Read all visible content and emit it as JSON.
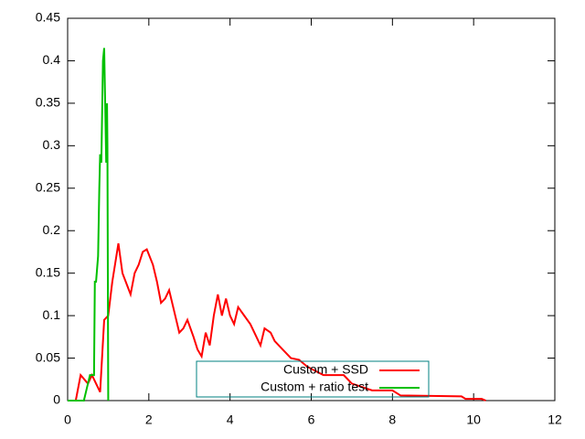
{
  "chart_data": {
    "type": "line",
    "xlim": [
      0,
      12
    ],
    "xticks": [
      0,
      2,
      4,
      6,
      8,
      10,
      12
    ],
    "ylim": [
      0,
      0.45
    ],
    "yticks": [
      0,
      0.05,
      0.1,
      0.15,
      0.2,
      0.25,
      0.3,
      0.35,
      0.4,
      0.45
    ],
    "legend": "lower center",
    "series": [
      {
        "name": "Custom + SSD",
        "color": "#ff0000",
        "x": [
          0,
          0.2,
          0.32,
          0.5,
          0.6,
          0.7,
          0.8,
          0.9,
          1.0,
          1.1,
          1.25,
          1.35,
          1.55,
          1.65,
          1.75,
          1.85,
          1.95,
          2.1,
          2.2,
          2.3,
          2.4,
          2.5,
          2.6,
          2.75,
          2.85,
          2.95,
          3.1,
          3.2,
          3.3,
          3.4,
          3.5,
          3.6,
          3.7,
          3.8,
          3.9,
          4.0,
          4.1,
          4.2,
          4.35,
          4.5,
          4.6,
          4.75,
          4.85,
          5.0,
          5.1,
          5.3,
          5.5,
          5.7,
          5.9,
          6.1,
          6.3,
          6.8,
          7.0,
          7.5,
          8.0,
          8.2,
          9.7,
          9.8,
          10.2,
          10.3
        ],
        "values": [
          0,
          0,
          0.03,
          0.02,
          0.03,
          0.02,
          0.01,
          0.095,
          0.1,
          0.14,
          0.185,
          0.15,
          0.125,
          0.15,
          0.16,
          0.175,
          0.178,
          0.16,
          0.14,
          0.115,
          0.12,
          0.13,
          0.11,
          0.08,
          0.085,
          0.095,
          0.075,
          0.06,
          0.052,
          0.08,
          0.065,
          0.1,
          0.125,
          0.1,
          0.12,
          0.1,
          0.09,
          0.11,
          0.1,
          0.09,
          0.08,
          0.065,
          0.085,
          0.08,
          0.07,
          0.06,
          0.05,
          0.048,
          0.04,
          0.035,
          0.03,
          0.03,
          0.02,
          0.012,
          0.012,
          0.006,
          0.005,
          0.002,
          0.002,
          0
        ]
      },
      {
        "name": "Custom + ratio test",
        "color": "#00c000",
        "x": [
          0,
          0.4,
          0.5,
          0.55,
          0.65,
          0.67,
          0.7,
          0.75,
          0.78,
          0.8,
          0.83,
          0.87,
          0.9,
          0.95,
          0.97,
          0.98,
          1.0
        ],
        "values": [
          0,
          0,
          0.02,
          0.03,
          0.03,
          0.14,
          0.14,
          0.17,
          0.25,
          0.29,
          0.28,
          0.4,
          0.415,
          0.28,
          0.35,
          0.3,
          0
        ]
      }
    ]
  }
}
